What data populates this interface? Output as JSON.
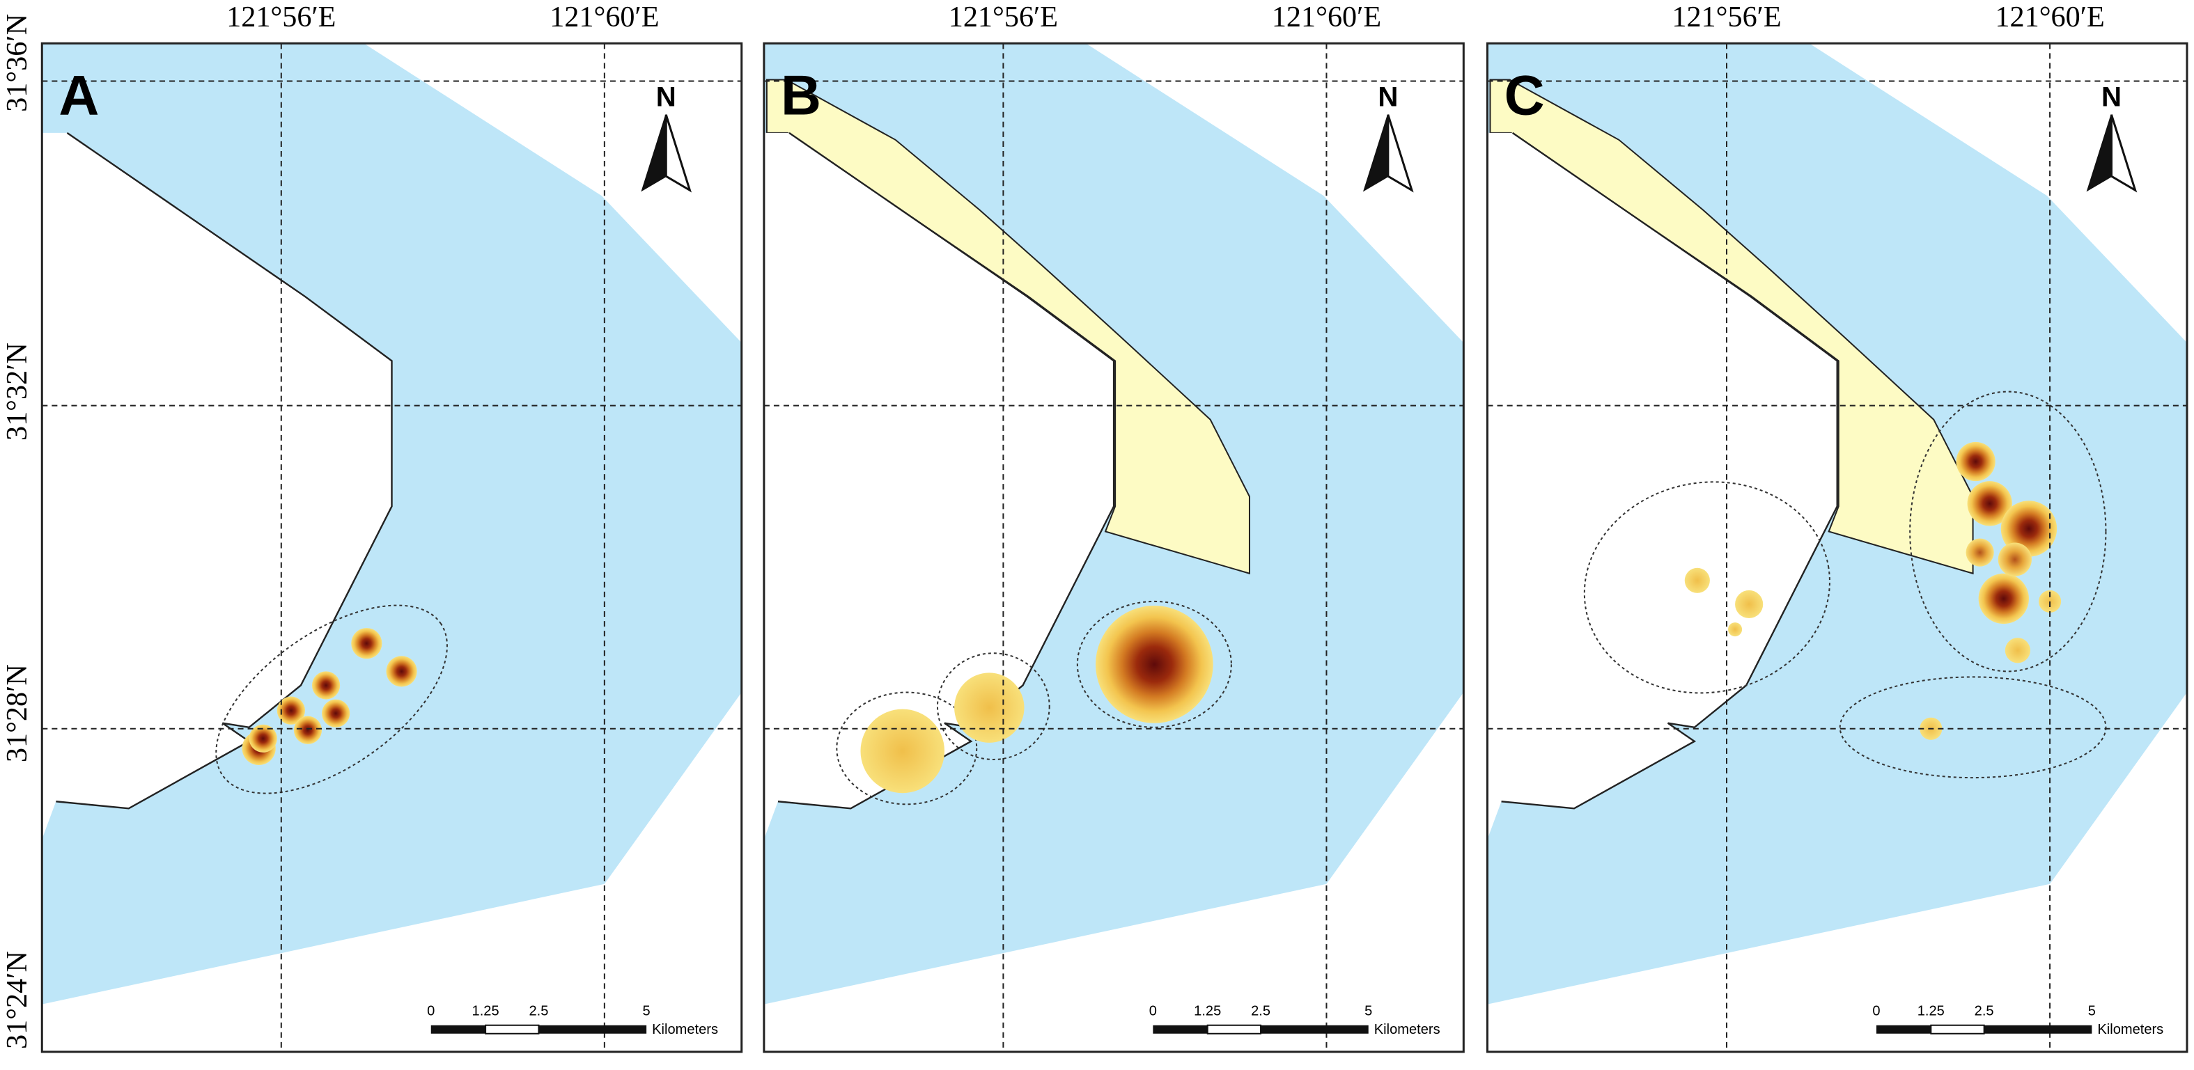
{
  "y_labels": [
    "31°36′N",
    "31°32′N",
    "31°28′N",
    "31°24′N"
  ],
  "panels": [
    {
      "label": "A",
      "x_labels": [
        "121°56′E",
        "121°60′E"
      ],
      "north": "N",
      "scale_labels": [
        "0",
        "1.25",
        "2.5",
        "5"
      ],
      "scale_unit": "Kilometers"
    },
    {
      "label": "B",
      "x_labels": [
        "121°56′E",
        "121°60′E"
      ],
      "north": "N",
      "scale_labels": [
        "0",
        "1.25",
        "2.5",
        "5"
      ],
      "scale_unit": "Kilometers"
    },
    {
      "label": "C",
      "x_labels": [
        "121°56′E",
        "121°60′E"
      ],
      "north": "N",
      "scale_labels": [
        "0",
        "1.25",
        "2.5",
        "5"
      ],
      "scale_unit": "Kilometers"
    }
  ]
}
